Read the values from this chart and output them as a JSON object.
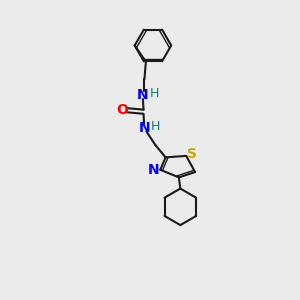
{
  "bg_color": "#ebebeb",
  "bond_color": "#1a1a1a",
  "N_color": "#0000ff",
  "O_color": "#ff0000",
  "S_color": "#ccaa00",
  "H_color": "#008080",
  "font_size": 9,
  "fig_size": [
    3.0,
    3.0
  ],
  "dpi": 100,
  "xlim": [
    0,
    10
  ],
  "ylim": [
    0,
    10
  ]
}
